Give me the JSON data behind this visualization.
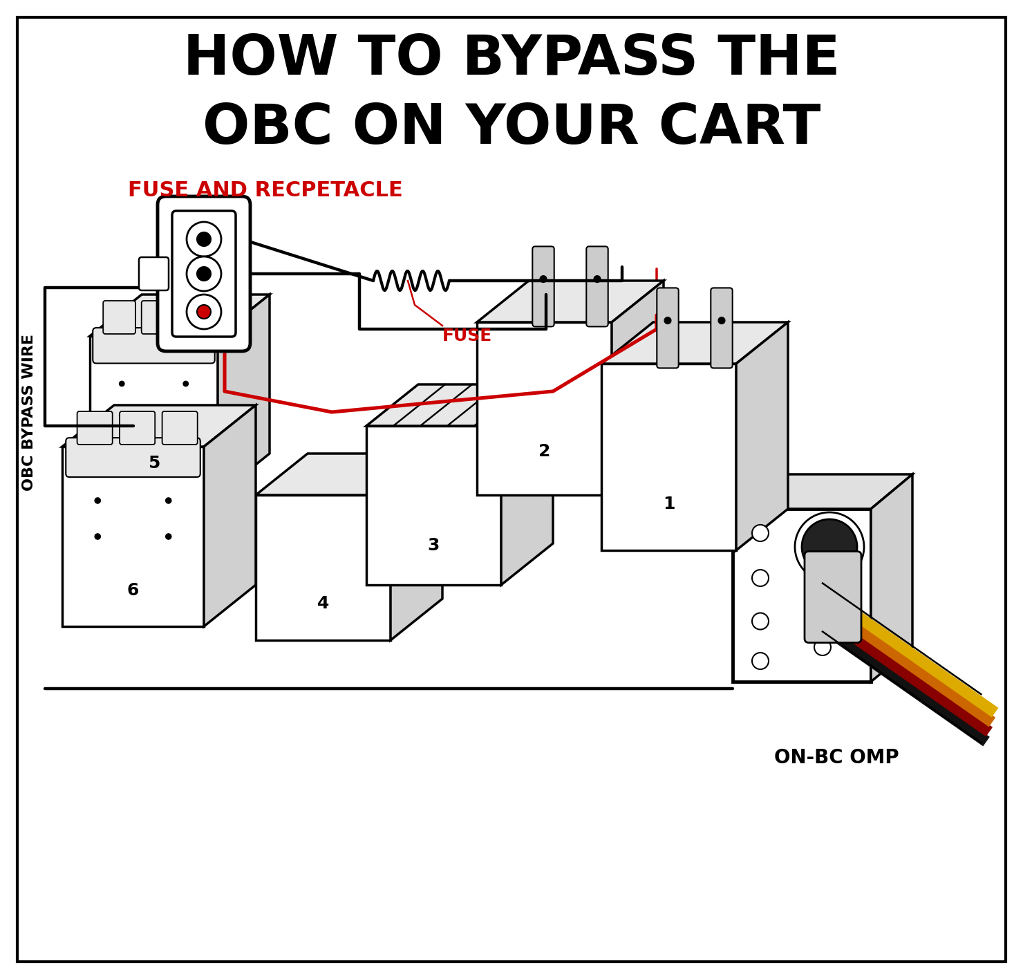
{
  "title_line1": "HOW TO BYPASS THE",
  "title_line2": "OBC ON YOUR CART",
  "title_fontsize": 58,
  "label_fuse_receptacle": "FUSE AND RECPETACLE",
  "label_fuse": "FUSE",
  "label_obc_bypass": "OBC BYPASS WIRE",
  "label_onbc_omp": "ON-BC OMP",
  "red_color": "#cc0000",
  "black_color": "#000000",
  "bg_color": "#ffffff",
  "lw_main": 2.5,
  "lw_wire": 3.2,
  "lw_border": 3.0,
  "battery_label_fontsize": 18,
  "anno_fontsize": 18
}
